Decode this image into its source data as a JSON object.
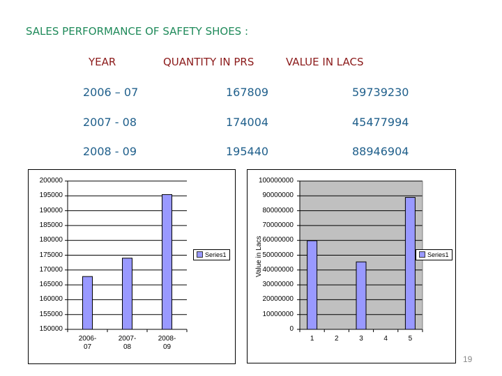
{
  "title": "SALES PERFORMANCE OF SAFETY SHOES :",
  "table": {
    "headers": [
      "YEAR",
      "QUANTITY IN PRS",
      "VALUE IN LACS"
    ],
    "rows": [
      {
        "year": "2006 – 07",
        "quantity": "167809",
        "value": "59739230"
      },
      {
        "year": "2007 -  08",
        "quantity": "174004",
        "value": "45477994"
      },
      {
        "year": "2008 - 09",
        "quantity": "195440",
        "value": "88946904"
      }
    ]
  },
  "page_number": "19",
  "chart_data": [
    {
      "type": "bar",
      "title": "",
      "categories": [
        "2006-07",
        "2007-08",
        "2008-09"
      ],
      "series": [
        {
          "name": "Series1",
          "values": [
            167809,
            174004,
            195440
          ],
          "color": "#9999ff"
        }
      ],
      "xlabel": "",
      "ylabel": "",
      "ylim": [
        150000,
        200000
      ],
      "yticks": [
        "200000",
        "195000",
        "190000",
        "185000",
        "180000",
        "175000",
        "170000",
        "165000",
        "160000",
        "155000",
        "150000"
      ],
      "grid": true,
      "legend_position": "right",
      "plot_background": "#ffffff"
    },
    {
      "type": "bar",
      "title": "",
      "categories": [
        "1",
        "2",
        "3",
        "4",
        "5"
      ],
      "series": [
        {
          "name": "Series1",
          "values": [
            59739230,
            null,
            45477994,
            null,
            88946904
          ],
          "color": "#9999ff"
        }
      ],
      "xlabel": "",
      "ylabel": "Value in Lacs",
      "ylim": [
        0,
        100000000
      ],
      "yticks": [
        "100000000",
        "90000000",
        "80000000",
        "70000000",
        "60000000",
        "50000000",
        "40000000",
        "30000000",
        "20000000",
        "10000000",
        "0"
      ],
      "grid": true,
      "legend_position": "right",
      "plot_background": "#c0c0c0"
    }
  ]
}
